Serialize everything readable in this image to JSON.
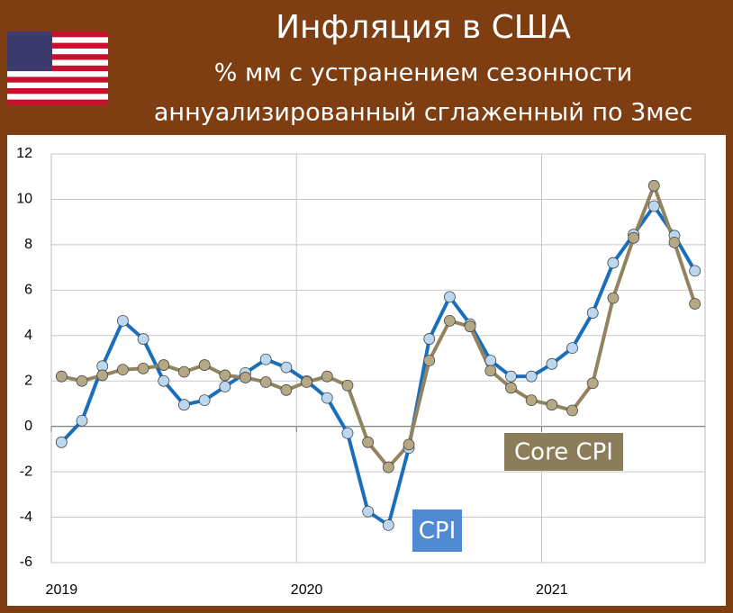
{
  "chart_data": {
    "type": "line",
    "title": "Инфляция в США",
    "subtitle": [
      "% мм с устранением сезонности",
      "аннуализированный сглаженный по 3мес"
    ],
    "categories": [
      "2019",
      null,
      null,
      null,
      null,
      null,
      null,
      null,
      null,
      null,
      null,
      null,
      "2020",
      null,
      null,
      null,
      null,
      null,
      null,
      null,
      null,
      null,
      null,
      null,
      "2021",
      null,
      null,
      null,
      null,
      null,
      null,
      null
    ],
    "series": [
      {
        "name": "CPI",
        "color": "#1a6fbd",
        "values": [
          -0.7,
          0.25,
          2.65,
          4.65,
          3.85,
          2.0,
          0.95,
          1.15,
          1.75,
          2.35,
          2.95,
          2.6,
          2.0,
          1.25,
          -0.3,
          -3.75,
          -4.35,
          -0.95,
          3.85,
          5.7,
          4.5,
          2.9,
          2.2,
          2.2,
          2.75,
          3.45,
          5.0,
          7.2,
          8.45,
          9.7,
          8.4,
          6.85
        ]
      },
      {
        "name": "Core CPI",
        "color": "#93845f",
        "values": [
          2.2,
          2.0,
          2.25,
          2.5,
          2.55,
          2.7,
          2.4,
          2.7,
          2.25,
          2.15,
          1.95,
          1.6,
          1.95,
          2.2,
          1.8,
          -0.7,
          -1.8,
          -0.8,
          2.9,
          4.65,
          4.4,
          2.45,
          1.7,
          1.15,
          0.95,
          0.7,
          1.9,
          5.65,
          8.3,
          10.6,
          8.1,
          5.4
        ]
      }
    ],
    "ylim": [
      -6,
      12
    ],
    "yticks": [
      -6,
      -4,
      -2,
      0,
      2,
      4,
      6,
      8,
      10,
      12
    ],
    "grid": true
  }
}
